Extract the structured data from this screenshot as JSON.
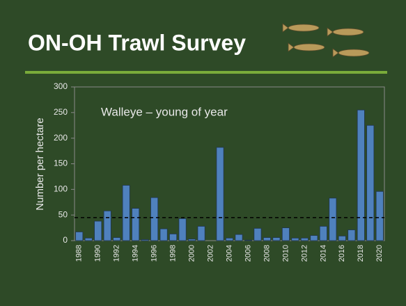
{
  "title": "ON-OH Trawl Survey",
  "chart_data": {
    "type": "bar",
    "annotation": "Walleye – young of year",
    "y_label": "Number per hectare",
    "categories": [
      "1988",
      null,
      "1990",
      null,
      "1992",
      null,
      "1994",
      null,
      "1996",
      null,
      "1998",
      null,
      "2000",
      null,
      "2002",
      null,
      "2004",
      null,
      "2006",
      null,
      "2008",
      null,
      "2010",
      null,
      "2012",
      null,
      "2014",
      null,
      "2016",
      null,
      "2018",
      null,
      "2020"
    ],
    "values": [
      17,
      5,
      38,
      58,
      6,
      108,
      63,
      2,
      84,
      23,
      13,
      43,
      3,
      28,
      0,
      182,
      5,
      12,
      1,
      24,
      6,
      6,
      25,
      5,
      5,
      10,
      28,
      83,
      9,
      21,
      255,
      225,
      96
    ],
    "color": "#4f81bd",
    "reference_line": 45,
    "ylim": [
      0,
      300
    ],
    "yticks": [
      0,
      50,
      100,
      150,
      200,
      250,
      300
    ]
  }
}
